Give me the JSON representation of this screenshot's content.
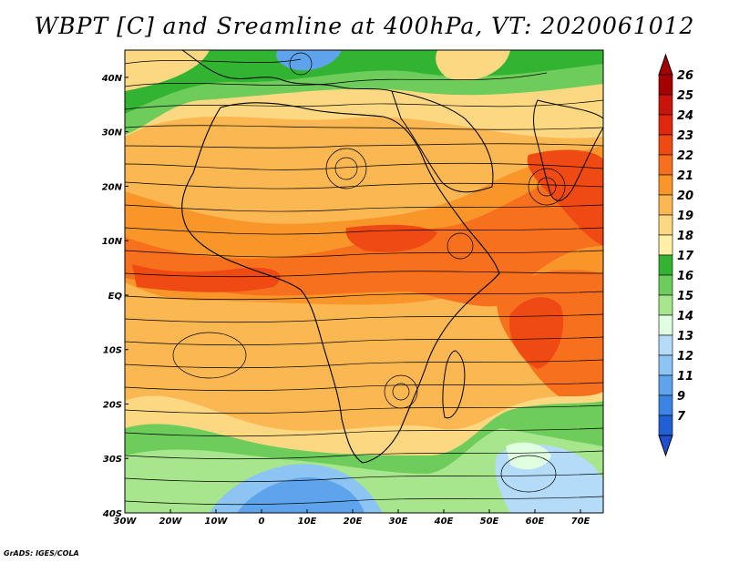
{
  "title": "WBPT [C] and Sreamline at 400hPa, VT: 2020061012",
  "credit": "GrADS: IGES/COLA",
  "map": {
    "lon_range": [
      -30,
      75
    ],
    "lat_range": [
      -40,
      45
    ],
    "lon_ticks": [
      {
        "value": -30,
        "label": "30W"
      },
      {
        "value": -20,
        "label": "20W"
      },
      {
        "value": -10,
        "label": "10W"
      },
      {
        "value": 0,
        "label": "0"
      },
      {
        "value": 10,
        "label": "10E"
      },
      {
        "value": 20,
        "label": "20E"
      },
      {
        "value": 30,
        "label": "30E"
      },
      {
        "value": 40,
        "label": "40E"
      },
      {
        "value": 50,
        "label": "50E"
      },
      {
        "value": 60,
        "label": "60E"
      },
      {
        "value": 70,
        "label": "70E"
      }
    ],
    "lat_ticks": [
      {
        "value": 40,
        "label": "40N"
      },
      {
        "value": 30,
        "label": "30N"
      },
      {
        "value": 20,
        "label": "20N"
      },
      {
        "value": 10,
        "label": "10N"
      },
      {
        "value": 0,
        "label": "EQ"
      },
      {
        "value": -10,
        "label": "10S"
      },
      {
        "value": -20,
        "label": "20S"
      },
      {
        "value": -30,
        "label": "30S"
      },
      {
        "value": -40,
        "label": "40S"
      }
    ]
  },
  "colorbar": {
    "levels": [
      {
        "label": "26",
        "color": "#a50000"
      },
      {
        "label": "25",
        "color": "#c8140a"
      },
      {
        "label": "24",
        "color": "#e0280e"
      },
      {
        "label": "23",
        "color": "#f04a14"
      },
      {
        "label": "22",
        "color": "#f7701e"
      },
      {
        "label": "21",
        "color": "#f9962a"
      },
      {
        "label": "20",
        "color": "#fbb852"
      },
      {
        "label": "19",
        "color": "#fdd882"
      },
      {
        "label": "18",
        "color": "#fff0a8"
      },
      {
        "label": "17",
        "color": "#32b432"
      },
      {
        "label": "16",
        "color": "#6ecc5a"
      },
      {
        "label": "15",
        "color": "#a8e68e"
      },
      {
        "label": "14",
        "color": "#e0ffe0"
      },
      {
        "label": "13",
        "color": "#b4dcf8"
      },
      {
        "label": "12",
        "color": "#8cc4f4"
      },
      {
        "label": "11",
        "color": "#5ea4ec"
      },
      {
        "label": "9",
        "color": "#3c84e4"
      },
      {
        "label": "7",
        "color": "#2060d2"
      }
    ],
    "top_color": "#a50000",
    "bottom_color": "#2050d0"
  }
}
